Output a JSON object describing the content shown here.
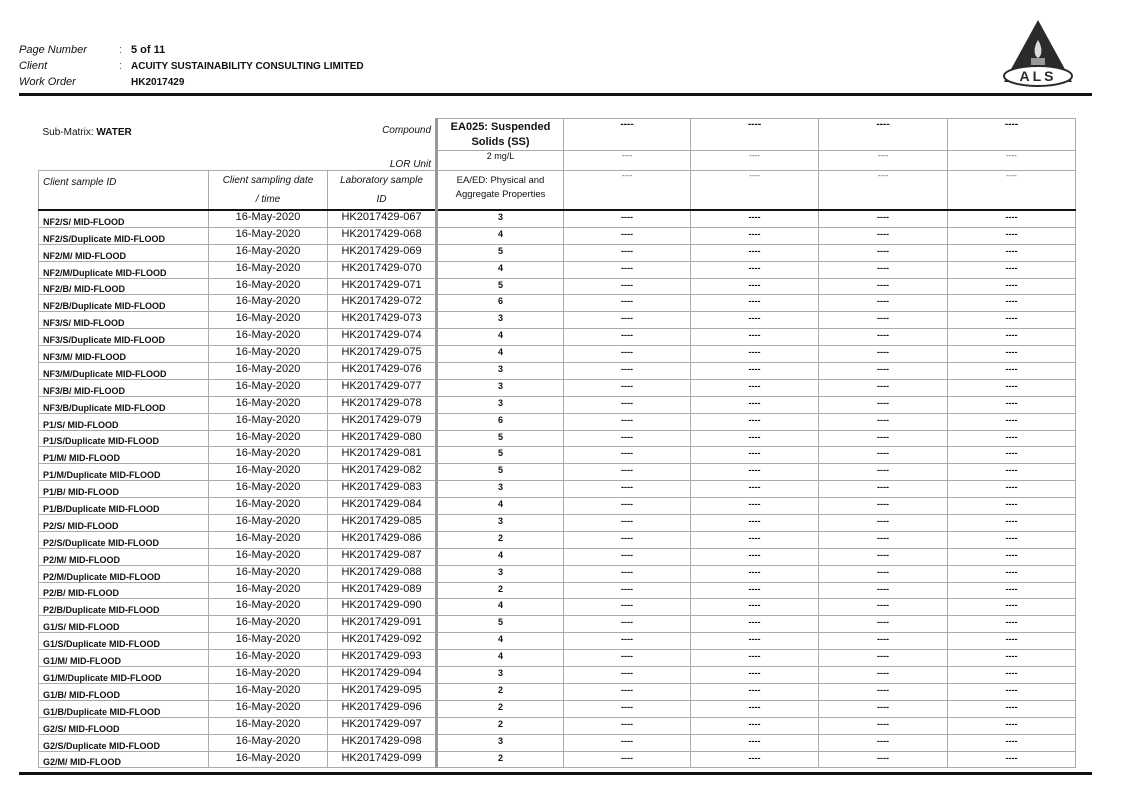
{
  "header": {
    "page_number_label": "Page Number",
    "page_number": "5 of 11",
    "client_label": "Client",
    "client": "ACUITY SUSTAINABILITY CONSULTING LIMITED",
    "work_order_label": "Work Order",
    "work_order": "HK2017429",
    "separator": ":",
    "logo_text": "ALS"
  },
  "table": {
    "sub_matrix_label": "Sub-Matrix: ",
    "sub_matrix": "WATER",
    "compound_label": "Compound",
    "lor_unit_label": "LOR Unit",
    "col_client_sample_id": "Client sample ID",
    "col_sampling_date_1": "Client sampling date",
    "col_sampling_date_2": "/ time",
    "col_lab_id_1": "Laboratory sample",
    "col_lab_id_2": "ID",
    "compound": "EA025: Suspended Solids (SS)",
    "lor_unit": "2 mg/L",
    "method_group": "EA/ED: Physical and Aggregate Properties",
    "empty": "----",
    "rows": [
      [
        "NF2/S/ MID-FLOOD",
        "16-May-2020",
        "HK2017429-067",
        "3"
      ],
      [
        "NF2/S/Duplicate MID-FLOOD",
        "16-May-2020",
        "HK2017429-068",
        "4"
      ],
      [
        "NF2/M/ MID-FLOOD",
        "16-May-2020",
        "HK2017429-069",
        "5"
      ],
      [
        "NF2/M/Duplicate MID-FLOOD",
        "16-May-2020",
        "HK2017429-070",
        "4"
      ],
      [
        "NF2/B/ MID-FLOOD",
        "16-May-2020",
        "HK2017429-071",
        "5"
      ],
      [
        "NF2/B/Duplicate MID-FLOOD",
        "16-May-2020",
        "HK2017429-072",
        "6"
      ],
      [
        "NF3/S/ MID-FLOOD",
        "16-May-2020",
        "HK2017429-073",
        "3"
      ],
      [
        "NF3/S/Duplicate MID-FLOOD",
        "16-May-2020",
        "HK2017429-074",
        "4"
      ],
      [
        "NF3/M/ MID-FLOOD",
        "16-May-2020",
        "HK2017429-075",
        "4"
      ],
      [
        "NF3/M/Duplicate MID-FLOOD",
        "16-May-2020",
        "HK2017429-076",
        "3"
      ],
      [
        "NF3/B/ MID-FLOOD",
        "16-May-2020",
        "HK2017429-077",
        "3"
      ],
      [
        "NF3/B/Duplicate MID-FLOOD",
        "16-May-2020",
        "HK2017429-078",
        "3"
      ],
      [
        "P1/S/ MID-FLOOD",
        "16-May-2020",
        "HK2017429-079",
        "6"
      ],
      [
        "P1/S/Duplicate MID-FLOOD",
        "16-May-2020",
        "HK2017429-080",
        "5"
      ],
      [
        "P1/M/ MID-FLOOD",
        "16-May-2020",
        "HK2017429-081",
        "5"
      ],
      [
        "P1/M/Duplicate MID-FLOOD",
        "16-May-2020",
        "HK2017429-082",
        "5"
      ],
      [
        "P1/B/ MID-FLOOD",
        "16-May-2020",
        "HK2017429-083",
        "3"
      ],
      [
        "P1/B/Duplicate MID-FLOOD",
        "16-May-2020",
        "HK2017429-084",
        "4"
      ],
      [
        "P2/S/ MID-FLOOD",
        "16-May-2020",
        "HK2017429-085",
        "3"
      ],
      [
        "P2/S/Duplicate MID-FLOOD",
        "16-May-2020",
        "HK2017429-086",
        "2"
      ],
      [
        "P2/M/ MID-FLOOD",
        "16-May-2020",
        "HK2017429-087",
        "4"
      ],
      [
        "P2/M/Duplicate MID-FLOOD",
        "16-May-2020",
        "HK2017429-088",
        "3"
      ],
      [
        "P2/B/ MID-FLOOD",
        "16-May-2020",
        "HK2017429-089",
        "2"
      ],
      [
        "P2/B/Duplicate MID-FLOOD",
        "16-May-2020",
        "HK2017429-090",
        "4"
      ],
      [
        "G1/S/ MID-FLOOD",
        "16-May-2020",
        "HK2017429-091",
        "5"
      ],
      [
        "G1/S/Duplicate MID-FLOOD",
        "16-May-2020",
        "HK2017429-092",
        "4"
      ],
      [
        "G1/M/ MID-FLOOD",
        "16-May-2020",
        "HK2017429-093",
        "4"
      ],
      [
        "G1/M/Duplicate MID-FLOOD",
        "16-May-2020",
        "HK2017429-094",
        "3"
      ],
      [
        "G1/B/ MID-FLOOD",
        "16-May-2020",
        "HK2017429-095",
        "2"
      ],
      [
        "G1/B/Duplicate MID-FLOOD",
        "16-May-2020",
        "HK2017429-096",
        "2"
      ],
      [
        "G2/S/ MID-FLOOD",
        "16-May-2020",
        "HK2017429-097",
        "2"
      ],
      [
        "G2/S/Duplicate MID-FLOOD",
        "16-May-2020",
        "HK2017429-098",
        "3"
      ],
      [
        "G2/M/ MID-FLOOD",
        "16-May-2020",
        "HK2017429-099",
        "2"
      ]
    ]
  }
}
